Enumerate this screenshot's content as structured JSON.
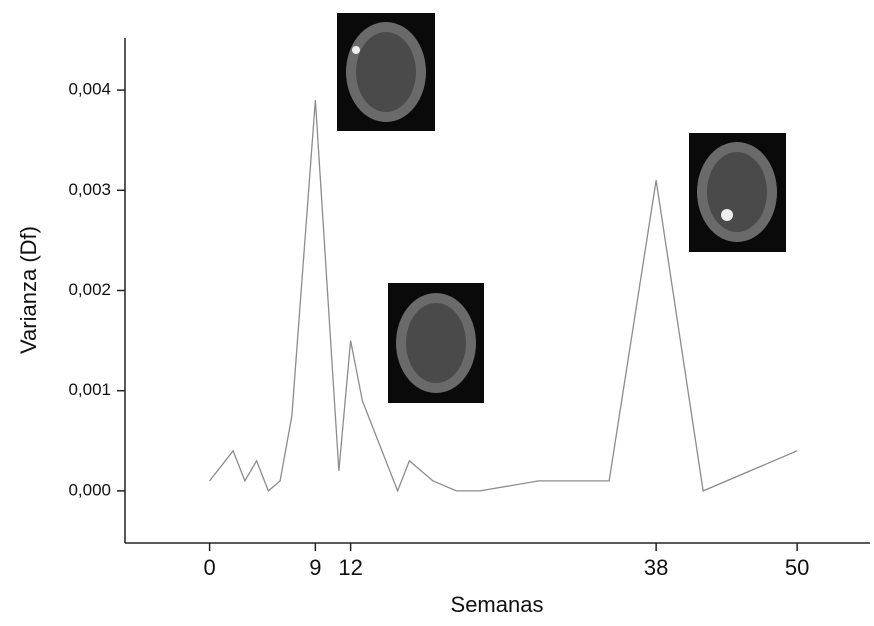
{
  "chart_data": {
    "type": "line",
    "x_label": "Semanas",
    "y_label": "Varianza (Df)",
    "x": [
      0,
      2,
      3,
      4,
      5,
      6,
      7,
      9,
      11,
      12,
      13,
      14,
      16,
      17,
      19,
      21,
      23,
      28,
      34,
      38,
      42,
      50
    ],
    "series": [
      {
        "color": "#8c8c8c",
        "values": [
          0.0001,
          0.0004,
          0.0001,
          0.0003,
          0,
          0.0001,
          0.00075,
          0.0039,
          0.0002,
          0.0015,
          0.0009,
          0.0006,
          0,
          0.0003,
          0.0001,
          0,
          0,
          0.0001,
          0.0001,
          0.0031,
          0,
          0.0004
        ]
      }
    ],
    "xlim": [
      -7.2,
      56.2
    ],
    "xticks": [
      0,
      9,
      12,
      38,
      50
    ],
    "ylim": [
      -0.00052,
      0.00452
    ],
    "yticks": [
      {
        "value": 0,
        "label": "0,000"
      },
      {
        "value": 0.001,
        "label": "0,001"
      },
      {
        "value": 0.002,
        "label": "0,002"
      },
      {
        "value": 0.003,
        "label": "0,003"
      },
      {
        "value": 0.004,
        "label": "0,004"
      }
    ]
  }
}
